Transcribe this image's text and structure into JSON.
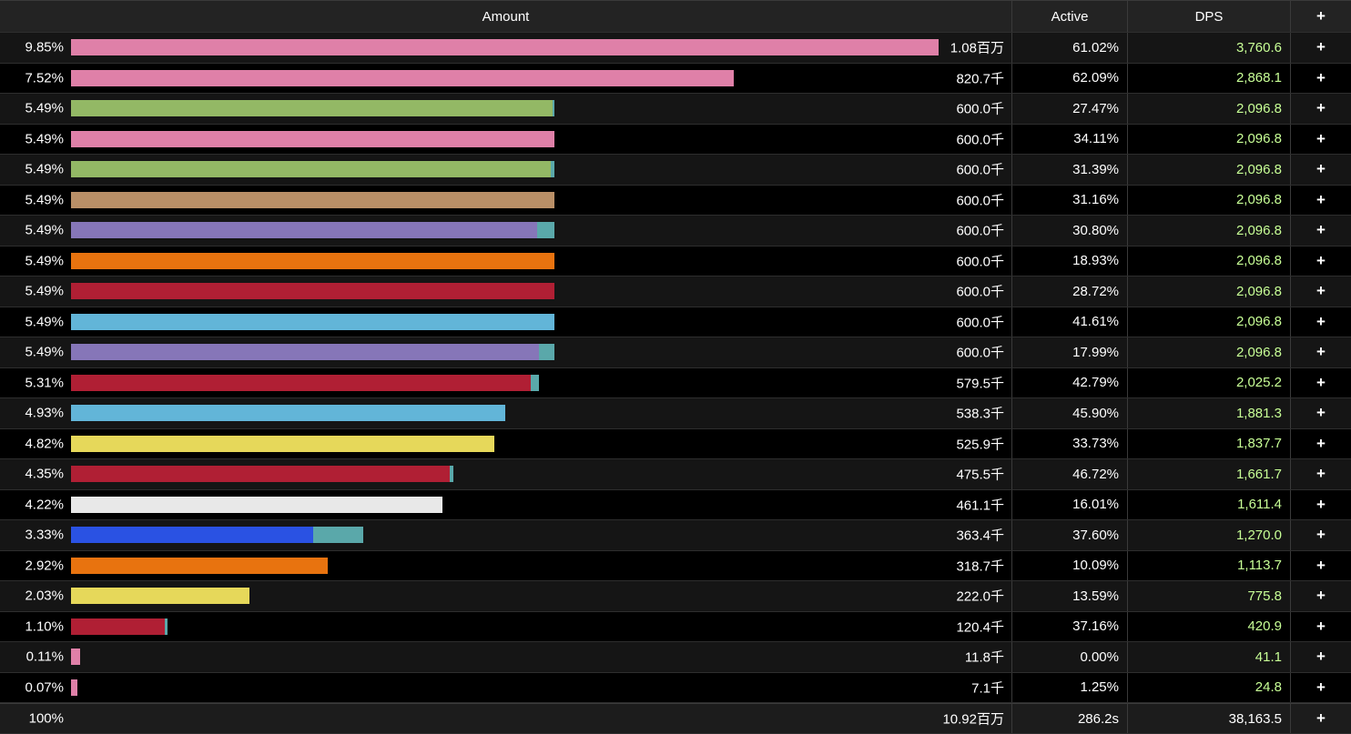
{
  "columns": {
    "amount": "Amount",
    "active": "Active",
    "dps": "DPS",
    "plus": "+"
  },
  "rows": [
    {
      "pct": "9.85%",
      "amount": "1.08百万",
      "active": "61.02%",
      "dps": "3,760.6",
      "plus": "+",
      "bar": {
        "fraction": 1.0,
        "secondary": 0.0,
        "color": "#df80a8"
      }
    },
    {
      "pct": "7.52%",
      "amount": "820.7千",
      "active": "62.09%",
      "dps": "2,868.1",
      "plus": "+",
      "bar": {
        "fraction": 0.764,
        "secondary": 0.0,
        "color": "#df80a8"
      }
    },
    {
      "pct": "5.49%",
      "amount": "600.0千",
      "active": "27.47%",
      "dps": "2,096.8",
      "plus": "+",
      "bar": {
        "fraction": 0.555,
        "secondary": 0.002,
        "color": "#93b865"
      }
    },
    {
      "pct": "5.49%",
      "amount": "600.0千",
      "active": "34.11%",
      "dps": "2,096.8",
      "plus": "+",
      "bar": {
        "fraction": 0.557,
        "secondary": 0.0,
        "color": "#df80a8"
      }
    },
    {
      "pct": "5.49%",
      "amount": "600.0千",
      "active": "31.39%",
      "dps": "2,096.8",
      "plus": "+",
      "bar": {
        "fraction": 0.553,
        "secondary": 0.004,
        "color": "#93b865"
      }
    },
    {
      "pct": "5.49%",
      "amount": "600.0千",
      "active": "31.16%",
      "dps": "2,096.8",
      "plus": "+",
      "bar": {
        "fraction": 0.557,
        "secondary": 0.0,
        "color": "#b98f67"
      }
    },
    {
      "pct": "5.49%",
      "amount": "600.0千",
      "active": "30.80%",
      "dps": "2,096.8",
      "plus": "+",
      "bar": {
        "fraction": 0.537,
        "secondary": 0.02,
        "color": "#8676b8"
      }
    },
    {
      "pct": "5.49%",
      "amount": "600.0千",
      "active": "18.93%",
      "dps": "2,096.8",
      "plus": "+",
      "bar": {
        "fraction": 0.557,
        "secondary": 0.0,
        "color": "#e8730f"
      }
    },
    {
      "pct": "5.49%",
      "amount": "600.0千",
      "active": "28.72%",
      "dps": "2,096.8",
      "plus": "+",
      "bar": {
        "fraction": 0.557,
        "secondary": 0.0,
        "color": "#b01f34"
      }
    },
    {
      "pct": "5.49%",
      "amount": "600.0千",
      "active": "41.61%",
      "dps": "2,096.8",
      "plus": "+",
      "bar": {
        "fraction": 0.557,
        "secondary": 0.0,
        "color": "#62b5d8"
      }
    },
    {
      "pct": "5.49%",
      "amount": "600.0千",
      "active": "17.99%",
      "dps": "2,096.8",
      "plus": "+",
      "bar": {
        "fraction": 0.539,
        "secondary": 0.018,
        "color": "#8676b8"
      }
    },
    {
      "pct": "5.31%",
      "amount": "579.5千",
      "active": "42.79%",
      "dps": "2,025.2",
      "plus": "+",
      "bar": {
        "fraction": 0.53,
        "secondary": 0.009,
        "color": "#b01f34"
      }
    },
    {
      "pct": "4.93%",
      "amount": "538.3千",
      "active": "45.90%",
      "dps": "1,881.3",
      "plus": "+",
      "bar": {
        "fraction": 0.5,
        "secondary": 0.0,
        "color": "#62b5d8"
      }
    },
    {
      "pct": "4.82%",
      "amount": "525.9千",
      "active": "33.73%",
      "dps": "1,837.7",
      "plus": "+",
      "bar": {
        "fraction": 0.488,
        "secondary": 0.0,
        "color": "#e6d85a"
      }
    },
    {
      "pct": "4.35%",
      "amount": "475.5千",
      "active": "46.72%",
      "dps": "1,661.7",
      "plus": "+",
      "bar": {
        "fraction": 0.437,
        "secondary": 0.004,
        "color": "#b01f34"
      }
    },
    {
      "pct": "4.22%",
      "amount": "461.1千",
      "active": "16.01%",
      "dps": "1,611.4",
      "plus": "+",
      "bar": {
        "fraction": 0.428,
        "secondary": 0.0,
        "color": "#e8e8e8"
      }
    },
    {
      "pct": "3.33%",
      "amount": "363.4千",
      "active": "37.60%",
      "dps": "1,270.0",
      "plus": "+",
      "bar": {
        "fraction": 0.279,
        "secondary": 0.058,
        "color": "#2a52e3"
      }
    },
    {
      "pct": "2.92%",
      "amount": "318.7千",
      "active": "10.09%",
      "dps": "1,113.7",
      "plus": "+",
      "bar": {
        "fraction": 0.296,
        "secondary": 0.0,
        "color": "#e8730f"
      }
    },
    {
      "pct": "2.03%",
      "amount": "222.0千",
      "active": "13.59%",
      "dps": "775.8",
      "plus": "+",
      "bar": {
        "fraction": 0.206,
        "secondary": 0.0,
        "color": "#e6d85a"
      }
    },
    {
      "pct": "1.10%",
      "amount": "120.4千",
      "active": "37.16%",
      "dps": "420.9",
      "plus": "+",
      "bar": {
        "fraction": 0.108,
        "secondary": 0.003,
        "color": "#b01f34"
      }
    },
    {
      "pct": "0.11%",
      "amount": "11.8千",
      "active": "0.00%",
      "dps": "41.1",
      "plus": "+",
      "bar": {
        "fraction": 0.011,
        "secondary": 0.0,
        "color": "#df80a8"
      }
    },
    {
      "pct": "0.07%",
      "amount": "7.1千",
      "active": "1.25%",
      "dps": "24.8",
      "plus": "+",
      "bar": {
        "fraction": 0.007,
        "secondary": 0.0,
        "color": "#df80a8"
      }
    }
  ],
  "total": {
    "pct": "100%",
    "amount": "10.92百万",
    "active": "286.2s",
    "dps": "38,163.5",
    "plus": "+"
  },
  "colors": {
    "dps_text": "#c8ff96",
    "secondary_bar": "#5aa8aa"
  }
}
